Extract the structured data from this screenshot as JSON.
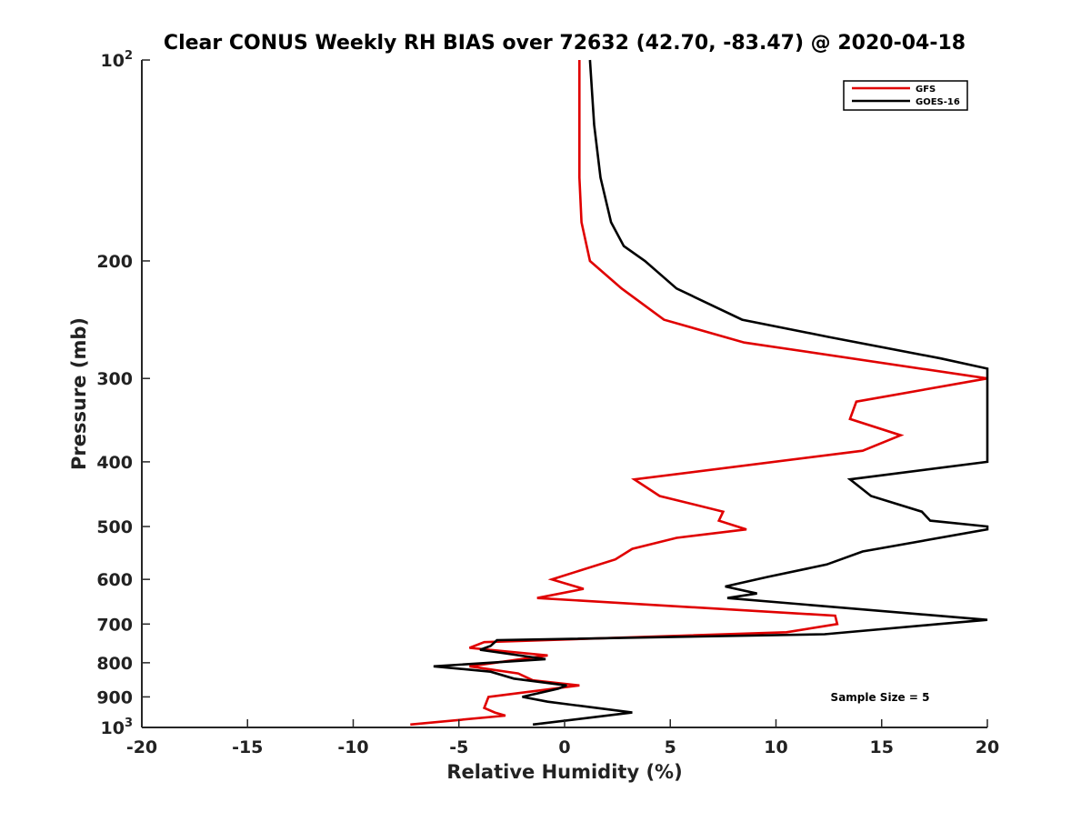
{
  "chart_data": {
    "type": "line",
    "title": "Clear CONUS Weekly RH BIAS over 72632 (42.70, -83.47) @ 2020-04-18",
    "xlabel": "Relative Humidity (%)",
    "ylabel": "Pressure (mb)",
    "xlim": [
      -20,
      20
    ],
    "ylim": [
      100,
      1000
    ],
    "y_scale": "log",
    "y_reversed": true,
    "grid": false,
    "legend_position": "top-right",
    "x_ticks": [
      -20,
      -15,
      -10,
      -5,
      0,
      5,
      10,
      15,
      20
    ],
    "x_tick_labels": [
      "-20",
      "-15",
      "-10",
      "-5",
      "0",
      "5",
      "10",
      "15",
      "20"
    ],
    "y_ticks": [
      {
        "value": 100,
        "label": "10",
        "sup": "2"
      },
      {
        "value": 200,
        "label": "200",
        "sup": ""
      },
      {
        "value": 300,
        "label": "300",
        "sup": ""
      },
      {
        "value": 400,
        "label": "400",
        "sup": ""
      },
      {
        "value": 500,
        "label": "500",
        "sup": ""
      },
      {
        "value": 600,
        "label": "600",
        "sup": ""
      },
      {
        "value": 700,
        "label": "700",
        "sup": ""
      },
      {
        "value": 800,
        "label": "800",
        "sup": ""
      },
      {
        "value": 900,
        "label": "900",
        "sup": ""
      },
      {
        "value": 1000,
        "label": "10",
        "sup": "3"
      }
    ],
    "annotation": "Sample Size = 5",
    "series": [
      {
        "name": "GFS",
        "color": "#e00000",
        "points": [
          [
            0.7,
            100
          ],
          [
            0.7,
            125
          ],
          [
            0.7,
            150
          ],
          [
            0.8,
            175
          ],
          [
            1.2,
            200
          ],
          [
            2.7,
            220
          ],
          [
            4.7,
            245
          ],
          [
            8.5,
            265
          ],
          [
            20.0,
            300
          ],
          [
            13.8,
            325
          ],
          [
            13.5,
            345
          ],
          [
            15.9,
            365
          ],
          [
            14.1,
            385
          ],
          [
            3.3,
            425
          ],
          [
            4.5,
            450
          ],
          [
            7.5,
            475
          ],
          [
            7.3,
            490
          ],
          [
            8.6,
            505
          ],
          [
            5.3,
            520
          ],
          [
            3.2,
            540
          ],
          [
            2.4,
            560
          ],
          [
            -0.6,
            600
          ],
          [
            0.9,
            620
          ],
          [
            -1.3,
            640
          ],
          [
            12.8,
            680
          ],
          [
            12.9,
            700
          ],
          [
            10.5,
            720
          ],
          [
            -3.8,
            745
          ],
          [
            -4.5,
            760
          ],
          [
            -0.8,
            780
          ],
          [
            -4.5,
            810
          ],
          [
            -2.2,
            830
          ],
          [
            -1.5,
            850
          ],
          [
            0.7,
            865
          ],
          [
            -3.6,
            900
          ],
          [
            -3.8,
            935
          ],
          [
            -3.3,
            950
          ],
          [
            -2.8,
            960
          ],
          [
            -7.3,
            990
          ]
        ]
      },
      {
        "name": "GOES-16",
        "color": "#000000",
        "points": [
          [
            1.2,
            100
          ],
          [
            1.4,
            125
          ],
          [
            1.7,
            150
          ],
          [
            2.2,
            175
          ],
          [
            2.8,
            190
          ],
          [
            3.8,
            200
          ],
          [
            5.3,
            220
          ],
          [
            8.4,
            245
          ],
          [
            12.5,
            260
          ],
          [
            17.8,
            280
          ],
          [
            20.0,
            290
          ],
          [
            20.0,
            400
          ],
          [
            13.5,
            425
          ],
          [
            14.5,
            450
          ],
          [
            16.9,
            475
          ],
          [
            17.3,
            490
          ],
          [
            20.0,
            500
          ],
          [
            20.0,
            505
          ],
          [
            14.1,
            545
          ],
          [
            12.4,
            570
          ],
          [
            9.6,
            595
          ],
          [
            7.6,
            615
          ],
          [
            9.1,
            630
          ],
          [
            7.7,
            640
          ],
          [
            20.0,
            690
          ],
          [
            17.7,
            700
          ],
          [
            12.3,
            725
          ],
          [
            -3.2,
            740
          ],
          [
            -3.5,
            755
          ],
          [
            -4.0,
            765
          ],
          [
            -0.9,
            790
          ],
          [
            -6.2,
            810
          ],
          [
            -3.5,
            825
          ],
          [
            -2.4,
            845
          ],
          [
            0.1,
            865
          ],
          [
            -0.3,
            875
          ],
          [
            -2.0,
            900
          ],
          [
            -0.8,
            915
          ],
          [
            3.2,
            950
          ],
          [
            -1.5,
            990
          ]
        ]
      }
    ]
  }
}
